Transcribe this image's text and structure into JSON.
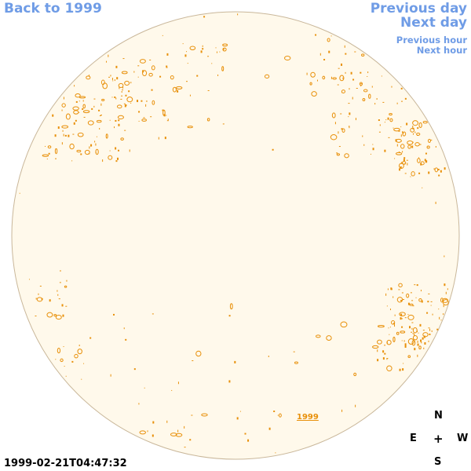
{
  "nav": {
    "back_label": "Back to 1999",
    "previous_day_label": "Previous day",
    "next_day_label": "Next day",
    "previous_hour_label": "Previous hour",
    "next_hour_label": "Next hour"
  },
  "disk": {
    "year_link": "1999",
    "fill_color": "#fff9eb",
    "edge_color": "#c9b79a",
    "feature_color": "#e8900a"
  },
  "compass": {
    "n": "N",
    "e": "E",
    "center": "+",
    "w": "W",
    "s": "S"
  },
  "timestamp": "1999-02-21T04:47:32"
}
